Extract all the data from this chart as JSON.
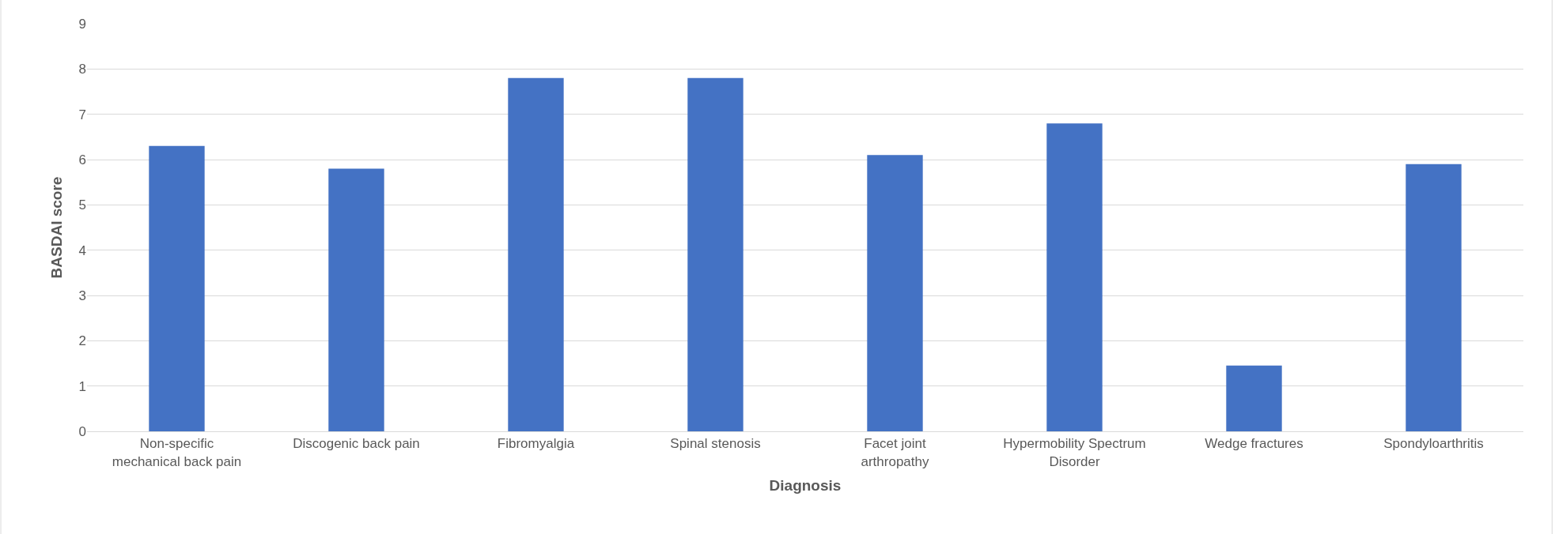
{
  "chart_data": {
    "type": "bar",
    "xlabel": "Diagnosis",
    "ylabel": "BASDAI score",
    "categories": [
      "Non-specific mechanical back pain",
      "Discogenic back pain",
      "Fibromyalgia",
      "Spinal stenosis",
      "Facet joint arthropathy",
      "Hypermobility Spectrum Disorder",
      "Wedge fractures",
      "Spondyloarthritis"
    ],
    "values": [
      6.3,
      5.8,
      7.8,
      7.8,
      6.1,
      6.8,
      1.45,
      5.9
    ],
    "color": "#4472c4",
    "ylim": [
      0,
      9
    ],
    "yticks": [
      0,
      1,
      2,
      3,
      4,
      5,
      6,
      7,
      8,
      9
    ],
    "grid": "y"
  }
}
